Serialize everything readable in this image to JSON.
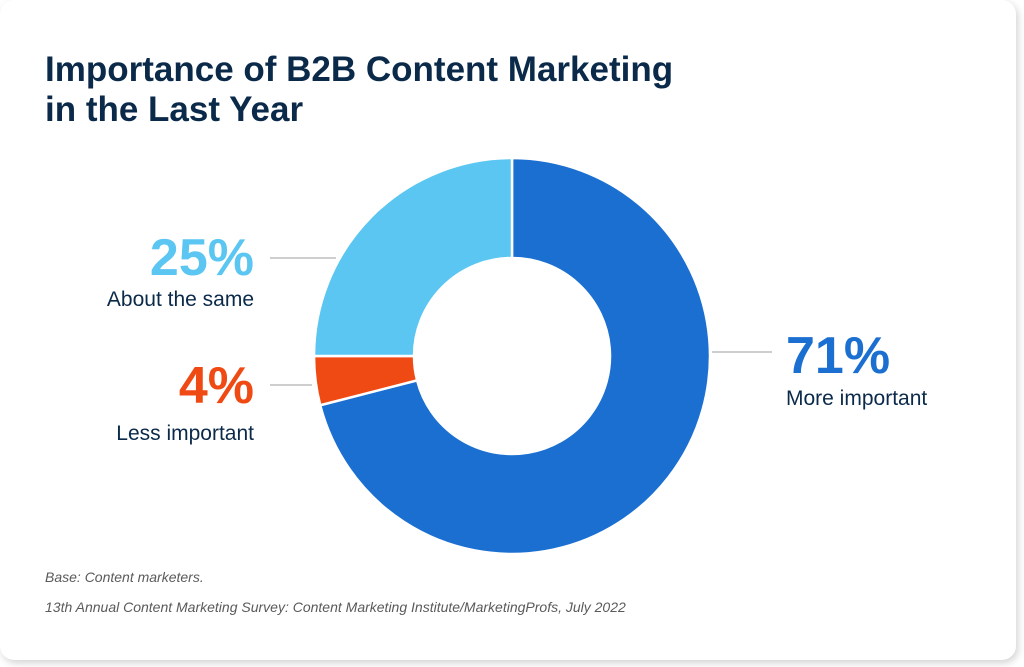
{
  "title_lines": [
    "Importance of B2B Content Marketing",
    "in the Last Year"
  ],
  "chart_data": {
    "type": "pie",
    "variant": "donut",
    "title": "Importance of B2B Content Marketing in the Last Year",
    "slices": [
      {
        "label": "More important",
        "value": 71,
        "value_label": "71%",
        "color": "#1a6fd1"
      },
      {
        "label": "Less important",
        "value": 4,
        "value_label": "4%",
        "color": "#f04a14"
      },
      {
        "label": "About the same",
        "value": 25,
        "value_label": "25%",
        "color": "#5bc6f2"
      }
    ]
  },
  "footnotes": {
    "base": "Base: Content marketers.",
    "source": "13th Annual Content Marketing Survey: Content Marketing Institute/MarketingProfs, July 2022"
  },
  "colors": {
    "title": "#0b2a4a",
    "leader_line": "#bdbdbd"
  }
}
